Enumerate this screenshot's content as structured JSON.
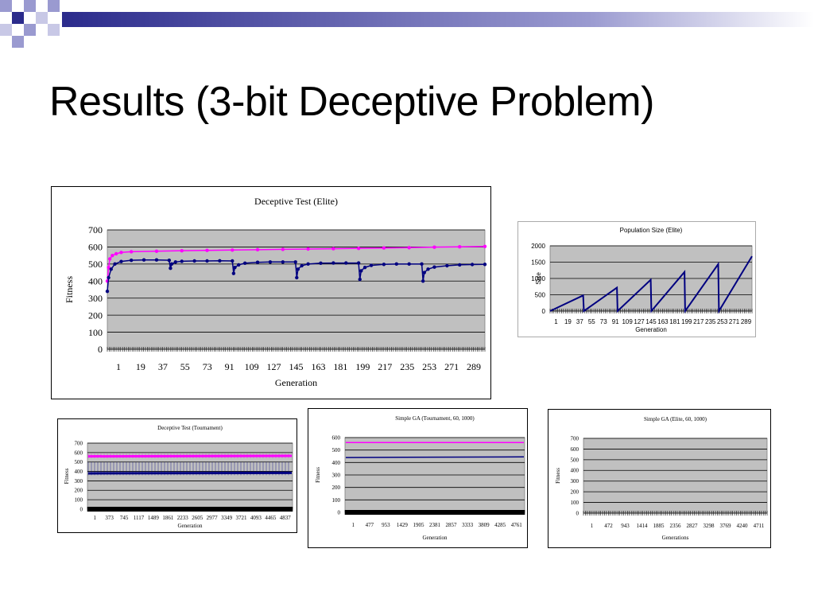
{
  "slide": {
    "title": "Results (3-bit Deceptive Problem)"
  },
  "colors": {
    "elite_series": "#ff00ff",
    "average_series": "#000080",
    "plot_bg": "#c0c0c0",
    "decor_blue": "#2b2b8c",
    "decor_lav": "#9a9ad0"
  },
  "chart_data": [
    {
      "type": "scatter",
      "title": "Deceptive Test (Elite)",
      "xlabel": "Generation",
      "ylabel": "Fitness",
      "ylim": [
        0,
        700
      ],
      "yticks": [
        0,
        100,
        200,
        300,
        400,
        500,
        600,
        700
      ],
      "xrange": [
        1,
        300
      ],
      "xtick_labels": [
        "1",
        "19",
        "37",
        "55",
        "73",
        "91",
        "109",
        "127",
        "145",
        "163",
        "181",
        "199",
        "217",
        "235",
        "253",
        "271",
        "289"
      ],
      "grid": true,
      "series": [
        {
          "color": "#ff00ff",
          "x": [
            1,
            2,
            3,
            5,
            8,
            12,
            20,
            40,
            60,
            80,
            100,
            120,
            140,
            160,
            180,
            200,
            220,
            240,
            260,
            280,
            300
          ],
          "values": [
            400,
            480,
            530,
            550,
            560,
            568,
            572,
            575,
            578,
            580,
            582,
            584,
            586,
            588,
            590,
            592,
            594,
            596,
            599,
            601,
            603
          ]
        },
        {
          "color": "#000080",
          "x": [
            1,
            2,
            4,
            7,
            12,
            20,
            30,
            40,
            50,
            51,
            52,
            55,
            60,
            70,
            80,
            90,
            100,
            101,
            102,
            105,
            110,
            120,
            130,
            140,
            150,
            151,
            152,
            155,
            160,
            170,
            180,
            190,
            200,
            201,
            202,
            205,
            210,
            220,
            230,
            240,
            250,
            251,
            252,
            255,
            260,
            270,
            280,
            290,
            300
          ],
          "values": [
            340,
            420,
            470,
            500,
            515,
            522,
            524,
            524,
            522,
            475,
            500,
            512,
            516,
            518,
            518,
            519,
            518,
            445,
            480,
            495,
            505,
            510,
            512,
            512,
            512,
            420,
            470,
            490,
            500,
            505,
            506,
            506,
            506,
            410,
            460,
            480,
            492,
            498,
            500,
            500,
            500,
            400,
            450,
            470,
            482,
            490,
            495,
            497,
            498
          ]
        }
      ]
    },
    {
      "type": "line",
      "title": "Population Size (Elite)",
      "xlabel": "Generation",
      "ylabel": "Size",
      "ylim": [
        0,
        2000
      ],
      "yticks": [
        0,
        500,
        1000,
        1500,
        2000
      ],
      "xrange": [
        1,
        300
      ],
      "xtick_labels": [
        "1",
        "19",
        "37",
        "55",
        "73",
        "91",
        "109",
        "127",
        "145",
        "163",
        "181",
        "199",
        "217",
        "235",
        "253",
        "271",
        "289"
      ],
      "grid": true,
      "series": [
        {
          "color": "#000080",
          "x": [
            1,
            50,
            51,
            100,
            101,
            150,
            151,
            200,
            201,
            250,
            251,
            300
          ],
          "values": [
            0,
            480,
            0,
            720,
            0,
            960,
            0,
            1200,
            0,
            1440,
            0,
            1680
          ]
        }
      ]
    },
    {
      "type": "scatter",
      "title": "Deceptive Test (Tournament)",
      "xlabel": "Generation",
      "ylabel": "Fitness",
      "ylim": [
        0,
        700
      ],
      "yticks": [
        0,
        100,
        200,
        300,
        400,
        500,
        600,
        700
      ],
      "xtick_labels": [
        "1",
        "373",
        "745",
        "1117",
        "1489",
        "1861",
        "2233",
        "2605",
        "2977",
        "3349",
        "3721",
        "4093",
        "4465",
        "4837"
      ],
      "grid": true,
      "series": [
        {
          "color": "#ff00ff",
          "x": [
            1,
            5000
          ],
          "values": [
            560,
            565
          ]
        },
        {
          "color": "#000080",
          "x": [
            1,
            5000
          ],
          "values": [
            380,
            385
          ]
        }
      ]
    },
    {
      "type": "scatter",
      "title": "Simple GA (Tournament, 60, 1000)",
      "xlabel": "Generation",
      "ylabel": "Fitness",
      "ylim": [
        0,
        600
      ],
      "yticks": [
        0,
        100,
        200,
        300,
        400,
        500,
        600
      ],
      "xtick_labels": [
        "1",
        "477",
        "953",
        "1429",
        "1905",
        "2381",
        "2857",
        "3333",
        "3809",
        "4285",
        "4761"
      ],
      "grid": true,
      "series": [
        {
          "color": "#ff00ff",
          "x": [
            1,
            5000
          ],
          "values": [
            560,
            560
          ]
        },
        {
          "color": "#000080",
          "x": [
            1,
            5000
          ],
          "values": [
            440,
            445
          ]
        }
      ]
    },
    {
      "type": "scatter",
      "title": "Simple GA (Elite, 60, 1000)",
      "xlabel": "Generations",
      "ylabel": "Fitness",
      "ylim": [
        0,
        700
      ],
      "yticks": [
        0,
        100,
        200,
        300,
        400,
        500,
        600,
        700
      ],
      "xtick_labels": [
        "1",
        "472",
        "943",
        "1414",
        "1885",
        "2356",
        "2827",
        "3298",
        "3769",
        "4240",
        "4711"
      ],
      "grid": true,
      "series": []
    }
  ]
}
